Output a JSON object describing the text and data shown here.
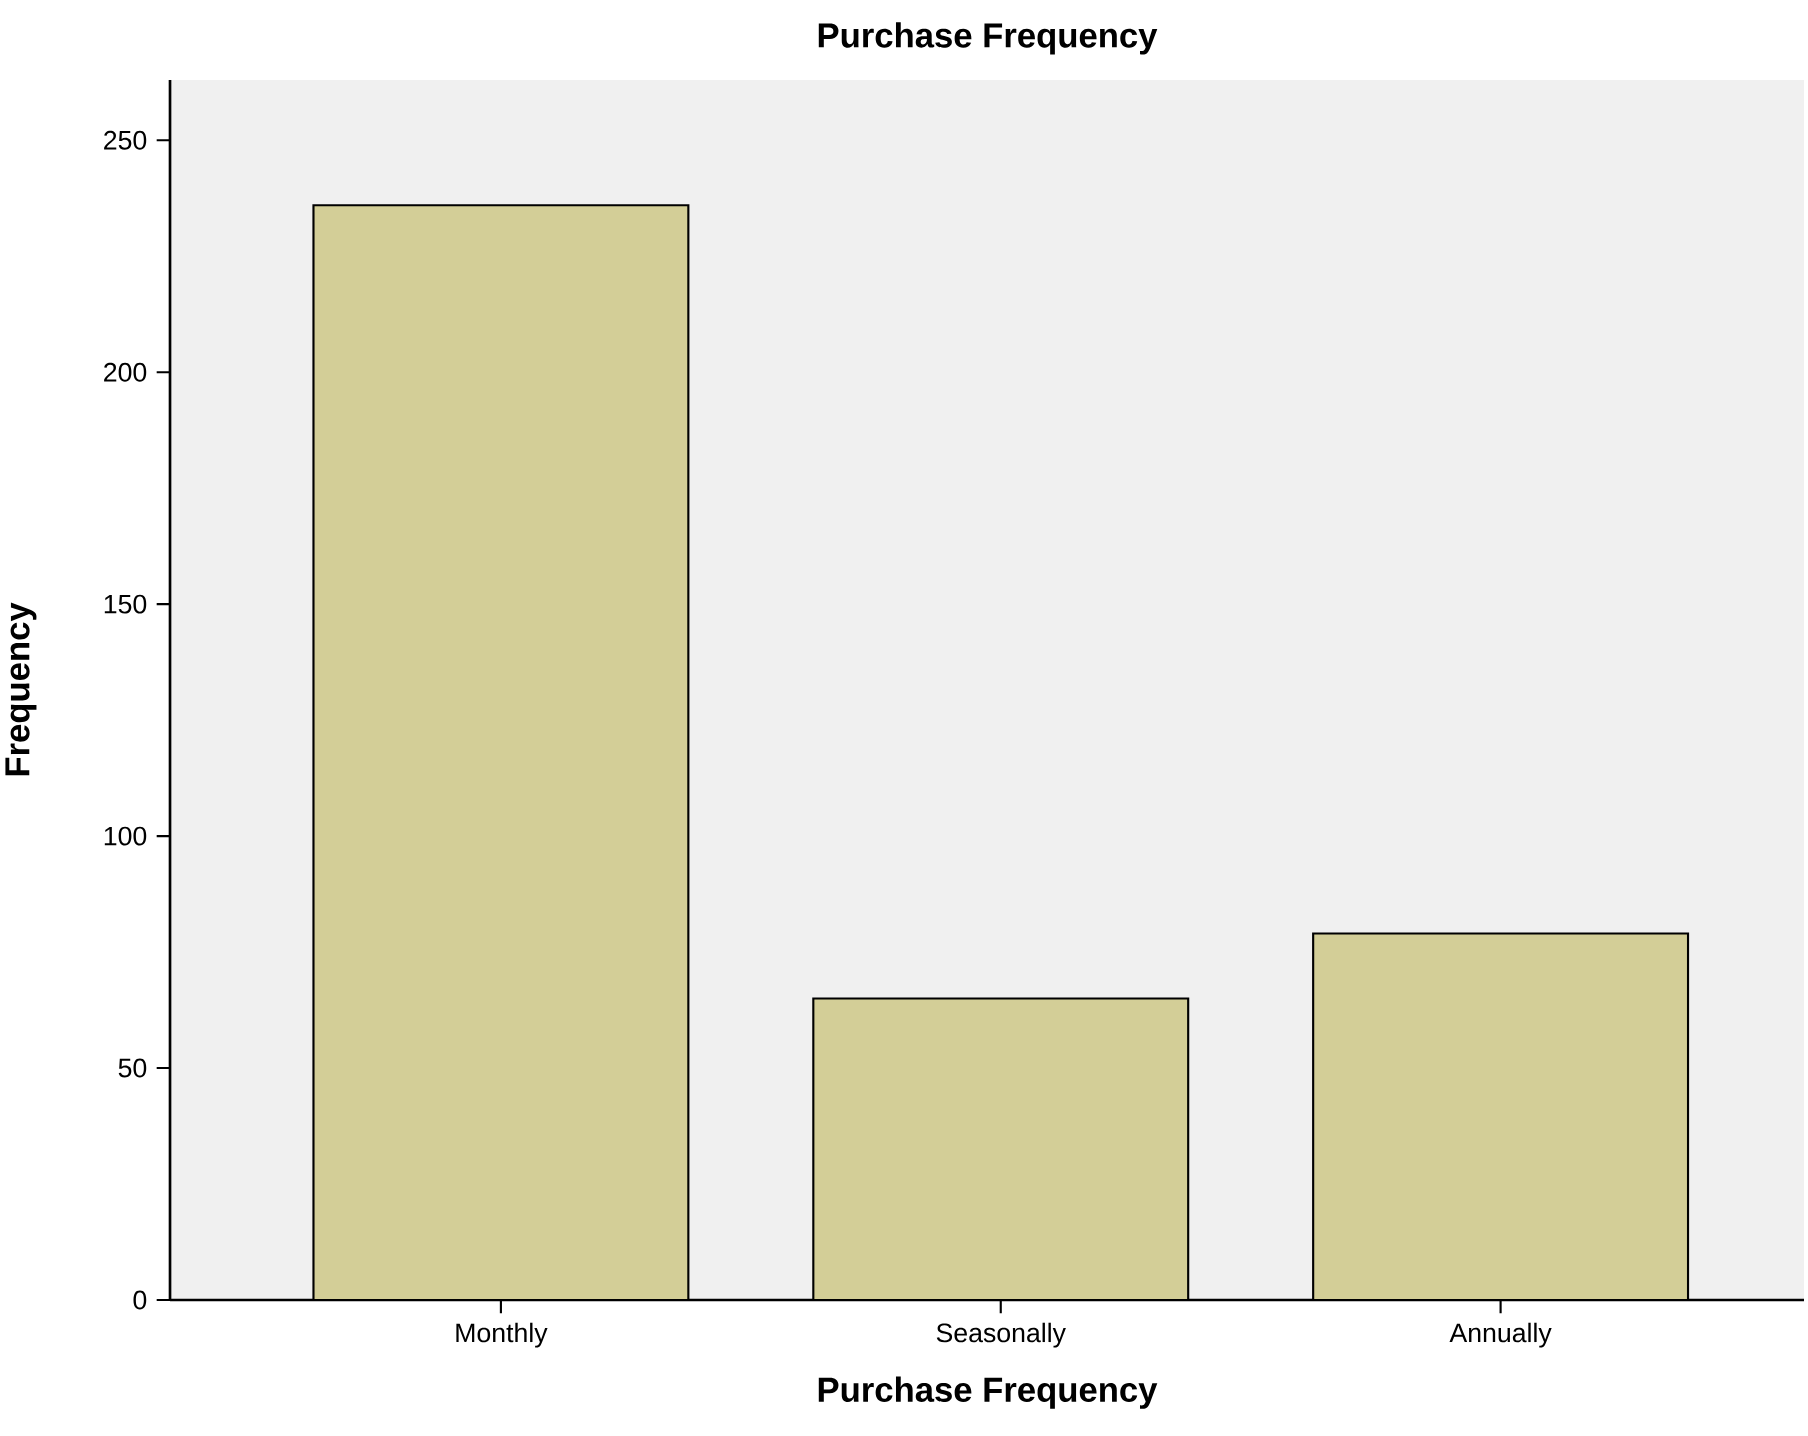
{
  "chart_data": {
    "type": "bar",
    "title": "Purchase Frequency",
    "xlabel": "Purchase Frequency",
    "ylabel": "Frequency",
    "categories": [
      "Monthly",
      "Seasonally",
      "Annually"
    ],
    "values": [
      236,
      65,
      79
    ],
    "color": "#d3ce97",
    "ylim": [
      0,
      263
    ],
    "yticks": [
      0,
      50,
      100,
      150,
      200,
      250
    ]
  }
}
